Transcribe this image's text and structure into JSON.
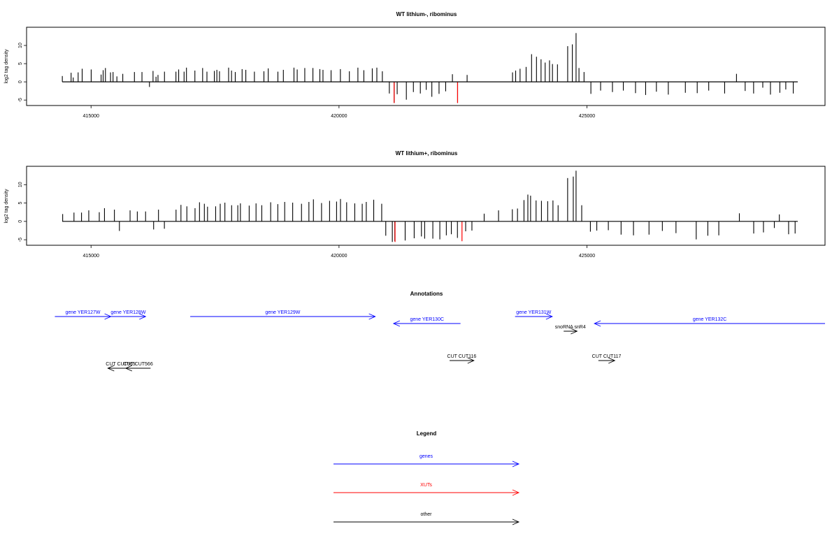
{
  "colors": {
    "gene": "#0000ff",
    "xut": "#ff0000",
    "other": "#000000",
    "tail": "#000000"
  },
  "chart_data": [
    {
      "type": "bar",
      "title": "WT lithium-, ribominus",
      "ylabel": "log2 tag density",
      "xlim": [
        413700,
        429800
      ],
      "ylim": [
        -6.5,
        15
      ],
      "xticks": [
        415000,
        420000,
        425000
      ],
      "yticks": [
        -5,
        0,
        5,
        10
      ],
      "bars": [
        [
          414421,
          1.6
        ],
        [
          414598,
          2.5
        ],
        [
          414641,
          1.2
        ],
        [
          414740,
          2.6
        ],
        [
          414821,
          3.6
        ],
        [
          415003,
          3.4
        ],
        [
          415203,
          2.0
        ],
        [
          415244,
          3.2
        ],
        [
          415290,
          3.8
        ],
        [
          415393,
          2.6
        ],
        [
          415444,
          2.7
        ],
        [
          415521,
          1.5
        ],
        [
          415640,
          2.2
        ],
        [
          415875,
          2.7
        ],
        [
          416027,
          2.7
        ],
        [
          416178,
          -1.4
        ],
        [
          416250,
          3.0
        ],
        [
          416310,
          1.4
        ],
        [
          416350,
          1.9
        ],
        [
          416481,
          2.8
        ],
        [
          416712,
          2.8
        ],
        [
          416767,
          3.4
        ],
        [
          416876,
          2.8
        ],
        [
          416924,
          3.9
        ],
        [
          417094,
          3.1
        ],
        [
          417250,
          3.8
        ],
        [
          417337,
          2.8
        ],
        [
          417486,
          3.0
        ],
        [
          417537,
          3.3
        ],
        [
          417590,
          2.9
        ],
        [
          417774,
          3.9
        ],
        [
          417833,
          3.1
        ],
        [
          417908,
          2.7
        ],
        [
          418046,
          3.5
        ],
        [
          418121,
          3.3
        ],
        [
          418294,
          2.8
        ],
        [
          418486,
          2.9
        ],
        [
          418573,
          3.7
        ],
        [
          418768,
          2.8
        ],
        [
          418878,
          3.3
        ],
        [
          419092,
          3.9
        ],
        [
          419157,
          3.4
        ],
        [
          419310,
          3.8
        ],
        [
          419474,
          3.8
        ],
        [
          419614,
          3.5
        ],
        [
          419677,
          3.3
        ],
        [
          419840,
          3.2
        ],
        [
          420028,
          3.5
        ],
        [
          420209,
          2.9
        ],
        [
          420381,
          3.9
        ],
        [
          420501,
          3.2
        ],
        [
          420671,
          3.7
        ],
        [
          420763,
          3.9
        ],
        [
          420874,
          2.9
        ],
        [
          421015,
          -3.2
        ],
        [
          421112,
          -5.8
        ],
        [
          421173,
          -3.4
        ],
        [
          421358,
          -4.9
        ],
        [
          421500,
          -2.8
        ],
        [
          421640,
          -3.2
        ],
        [
          421759,
          -2.2
        ],
        [
          421872,
          -4.1
        ],
        [
          422017,
          -3.3
        ],
        [
          422151,
          -2.6
        ],
        [
          422287,
          2.1
        ],
        [
          422391,
          -5.8
        ],
        [
          422583,
          1.9
        ],
        [
          423499,
          2.6
        ],
        [
          423562,
          3.1
        ],
        [
          423651,
          3.6
        ],
        [
          423773,
          4.1
        ],
        [
          423883,
          7.6
        ],
        [
          423982,
          6.9
        ],
        [
          424074,
          6.2
        ],
        [
          424157,
          5.3
        ],
        [
          424245,
          5.9
        ],
        [
          424304,
          4.9
        ],
        [
          424405,
          4.8
        ],
        [
          424611,
          9.8
        ],
        [
          424705,
          10.3
        ],
        [
          424780,
          13.4
        ],
        [
          424839,
          3.8
        ],
        [
          424941,
          2.7
        ],
        [
          425079,
          -3.3
        ],
        [
          425275,
          -2.4
        ],
        [
          425514,
          -2.8
        ],
        [
          425733,
          -2.4
        ],
        [
          425979,
          -3.1
        ],
        [
          426183,
          -3.6
        ],
        [
          426400,
          -2.7
        ],
        [
          426640,
          -3.5
        ],
        [
          426984,
          -3.0
        ],
        [
          427223,
          -3.1
        ],
        [
          427455,
          -2.4
        ],
        [
          427776,
          -3.2
        ],
        [
          428015,
          2.2
        ],
        [
          428190,
          -2.5
        ],
        [
          428360,
          -3.2
        ],
        [
          428545,
          -1.6
        ],
        [
          428700,
          -3.5
        ],
        [
          428889,
          -3.0
        ],
        [
          429009,
          -2.1
        ],
        [
          429160,
          -3.2
        ]
      ],
      "red_bars": [
        [
          421112,
          -5.8
        ],
        [
          422391,
          -5.8
        ]
      ]
    },
    {
      "type": "bar",
      "title": "WT lithium+, ribominus",
      "ylabel": "log2 tag density",
      "xlim": [
        413700,
        429800
      ],
      "ylim": [
        -6.5,
        15
      ],
      "xticks": [
        415000,
        420000,
        425000
      ],
      "yticks": [
        -5,
        0,
        5,
        10
      ],
      "bars": [
        [
          414428,
          2.0
        ],
        [
          414656,
          2.4
        ],
        [
          414808,
          2.4
        ],
        [
          414954,
          3.0
        ],
        [
          415166,
          2.5
        ],
        [
          415271,
          3.6
        ],
        [
          415471,
          3.2
        ],
        [
          415572,
          -2.6
        ],
        [
          415787,
          3.0
        ],
        [
          415933,
          2.7
        ],
        [
          416100,
          2.7
        ],
        [
          416262,
          -2.2
        ],
        [
          416360,
          3.2
        ],
        [
          416479,
          -2.0
        ],
        [
          416714,
          3.2
        ],
        [
          416813,
          4.5
        ],
        [
          416932,
          4.1
        ],
        [
          417097,
          3.6
        ],
        [
          417187,
          5.2
        ],
        [
          417285,
          4.8
        ],
        [
          417349,
          4.0
        ],
        [
          417513,
          4.1
        ],
        [
          417605,
          4.8
        ],
        [
          417699,
          5.1
        ],
        [
          417835,
          4.4
        ],
        [
          417959,
          4.4
        ],
        [
          418012,
          4.9
        ],
        [
          418189,
          4.3
        ],
        [
          418327,
          4.9
        ],
        [
          418443,
          4.4
        ],
        [
          418622,
          5.2
        ],
        [
          418766,
          4.7
        ],
        [
          418905,
          5.3
        ],
        [
          419066,
          5.1
        ],
        [
          419244,
          4.8
        ],
        [
          419393,
          5.3
        ],
        [
          419484,
          6.0
        ],
        [
          419648,
          5.0
        ],
        [
          419810,
          5.6
        ],
        [
          419951,
          5.4
        ],
        [
          420030,
          6.1
        ],
        [
          420154,
          5.2
        ],
        [
          420318,
          4.9
        ],
        [
          420468,
          4.8
        ],
        [
          420550,
          5.3
        ],
        [
          420700,
          5.9
        ],
        [
          420861,
          4.8
        ],
        [
          420943,
          -3.9
        ],
        [
          421075,
          -5.6
        ],
        [
          421125,
          -5.4
        ],
        [
          421334,
          -5.2
        ],
        [
          421516,
          -4.6
        ],
        [
          421662,
          -4.1
        ],
        [
          421727,
          -4.7
        ],
        [
          421892,
          -4.7
        ],
        [
          422033,
          -4.9
        ],
        [
          422164,
          -3.8
        ],
        [
          422265,
          -3.5
        ],
        [
          422388,
          -4.5
        ],
        [
          422554,
          -2.7
        ],
        [
          422680,
          -2.5
        ],
        [
          422927,
          2.1
        ],
        [
          423217,
          3.0
        ],
        [
          423495,
          3.3
        ],
        [
          423599,
          3.5
        ],
        [
          423730,
          5.8
        ],
        [
          423808,
          7.3
        ],
        [
          423863,
          7.0
        ],
        [
          423974,
          5.7
        ],
        [
          424082,
          5.6
        ],
        [
          424208,
          5.5
        ],
        [
          424314,
          5.7
        ],
        [
          424418,
          4.4
        ],
        [
          424610,
          11.8
        ],
        [
          424724,
          12.2
        ],
        [
          424780,
          13.8
        ],
        [
          424894,
          4.4
        ],
        [
          425069,
          -2.8
        ],
        [
          425198,
          -2.5
        ],
        [
          425431,
          -2.4
        ],
        [
          425688,
          -3.6
        ],
        [
          425938,
          -3.8
        ],
        [
          426251,
          -3.6
        ],
        [
          426520,
          -2.6
        ],
        [
          426795,
          -3.2
        ],
        [
          427203,
          -4.9
        ],
        [
          427437,
          -3.9
        ],
        [
          427658,
          -3.8
        ],
        [
          428073,
          2.2
        ],
        [
          428362,
          -3.3
        ],
        [
          428559,
          -3.0
        ],
        [
          428778,
          -1.8
        ],
        [
          428879,
          1.9
        ],
        [
          429066,
          -3.5
        ],
        [
          429197,
          -3.3
        ]
      ],
      "red_bars": [
        [
          421130,
          -5.6
        ],
        [
          422480,
          -5.4
        ]
      ]
    }
  ],
  "annotations": {
    "title": "Annotations",
    "features": [
      {
        "label": "gene YER127W",
        "type": "gene",
        "strand": "+",
        "x1": 414270,
        "x2": 415400,
        "row": 0
      },
      {
        "label": "gene YER128W",
        "type": "gene",
        "strand": "+",
        "x1": 415400,
        "x2": 416100,
        "row": 0
      },
      {
        "label": "gene YER129W",
        "type": "gene",
        "strand": "+",
        "x1": 417000,
        "x2": 420730,
        "row": 0
      },
      {
        "label": "gene YER130C",
        "type": "gene",
        "strand": "-",
        "x1": 421100,
        "x2": 422450,
        "row": 1
      },
      {
        "label": "gene YER131W",
        "type": "gene",
        "strand": "+",
        "x1": 423550,
        "x2": 424300,
        "row": 0
      },
      {
        "label": "gene YER132C",
        "type": "gene",
        "strand": "-",
        "x1": 425150,
        "x2": 429800,
        "row": 1
      },
      {
        "label": "snoRNA snR4",
        "type": "other",
        "strand": "+",
        "x1": 424530,
        "x2": 424800,
        "row": 2
      },
      {
        "label": "CUT CUT565",
        "type": "other",
        "strand": "-",
        "x1": 415340,
        "x2": 415850,
        "row": 3
      },
      {
        "label": "CUT CUT566",
        "type": "other",
        "strand": "-",
        "x1": 415700,
        "x2": 416200,
        "row": 4
      },
      {
        "label": "CUT CUT116",
        "type": "other",
        "strand": "+",
        "x1": 422230,
        "x2": 422720,
        "row": 5
      },
      {
        "label": "CUT CUT117",
        "type": "other",
        "strand": "+",
        "x1": 425230,
        "x2": 425560,
        "row": 5
      }
    ]
  },
  "legend": {
    "title": "Legend",
    "items": [
      {
        "label": "genes",
        "type": "gene"
      },
      {
        "label": "XUTs",
        "type": "xut"
      },
      {
        "label": "other",
        "type": "other"
      }
    ]
  }
}
